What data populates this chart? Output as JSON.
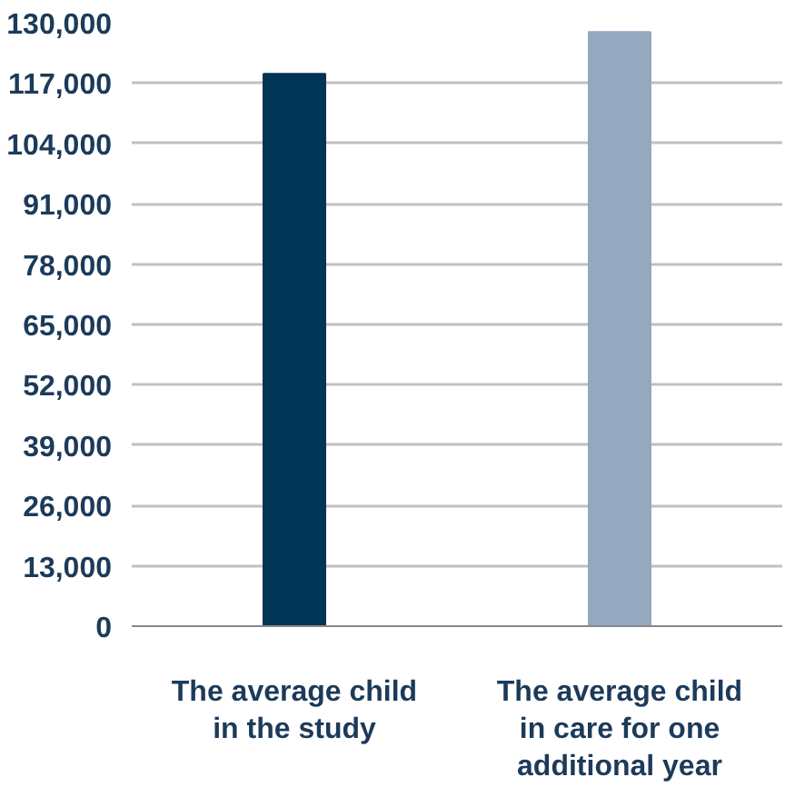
{
  "chart_data": {
    "type": "bar",
    "categories": [
      "The average child in the study",
      "The average child in care for one additional year"
    ],
    "colors": [
      "#003556",
      "#94a8c0"
    ],
    "values": [
      119000,
      128000
    ],
    "ylim": [
      0,
      130000
    ],
    "yticks": [
      {
        "value": 0,
        "label": "0"
      },
      {
        "value": 13000,
        "label": "13,000"
      },
      {
        "value": 26000,
        "label": "26,000"
      },
      {
        "value": 39000,
        "label": "39,000"
      },
      {
        "value": 52000,
        "label": "52,000"
      },
      {
        "value": 65000,
        "label": "65,000"
      },
      {
        "value": 78000,
        "label": "78,000"
      },
      {
        "value": 91000,
        "label": "91,000"
      },
      {
        "value": 104000,
        "label": "104,000"
      },
      {
        "value": 117000,
        "label": "117,000"
      },
      {
        "value": 130000,
        "label": "130,000"
      }
    ],
    "grid": "y"
  }
}
